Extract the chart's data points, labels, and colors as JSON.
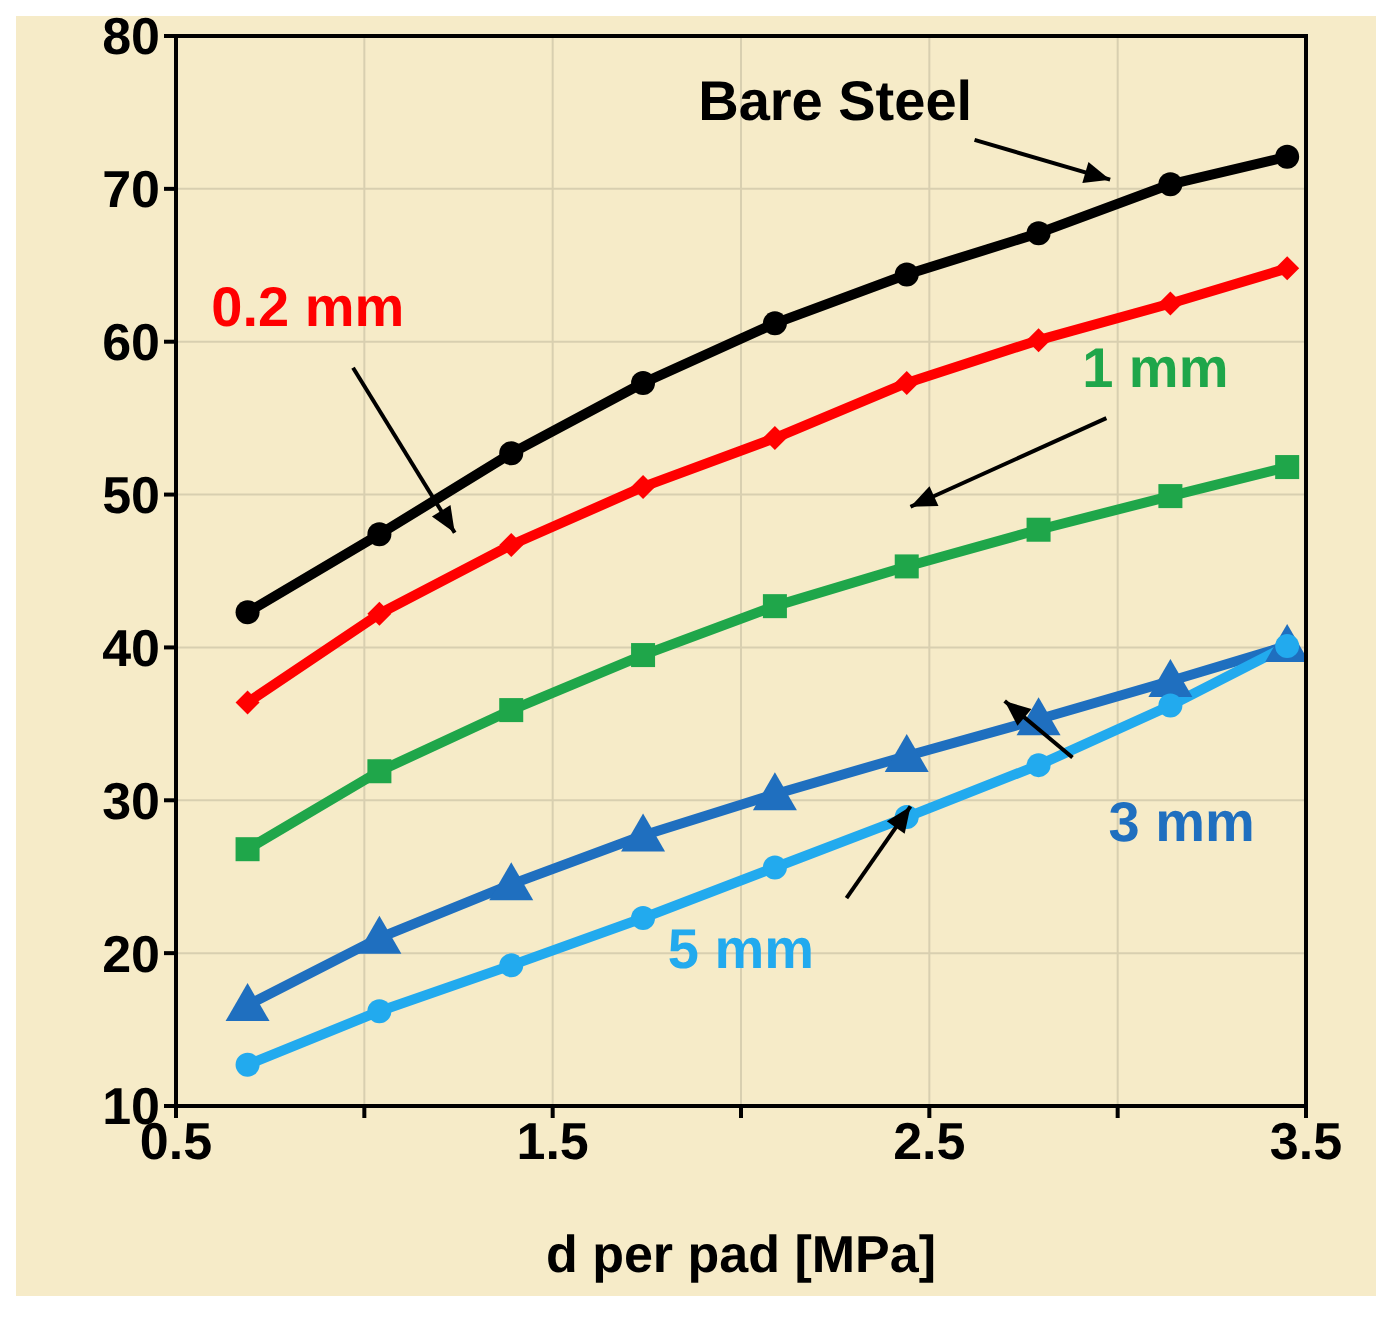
{
  "chart_data": {
    "type": "line",
    "xlabel": "d per pad [MPa]",
    "xlim": [
      0.5,
      3.5
    ],
    "ylim": [
      10,
      80
    ],
    "xticks": [
      0.5,
      {
        "value": 1,
        "label": null
      },
      1.5,
      {
        "value": 2,
        "label": null
      },
      2.5,
      {
        "value": 3,
        "label": null
      },
      3.5
    ],
    "yticks": [
      10,
      20,
      30,
      40,
      50,
      60,
      70,
      80
    ],
    "grid": true,
    "x": [
      0.69,
      1.04,
      1.39,
      1.74,
      2.09,
      2.44,
      2.79,
      3.14,
      3.45
    ],
    "series": [
      {
        "name": "Bare Steel",
        "color": "#000000",
        "marker": "circle",
        "values": [
          42.3,
          47.4,
          52.7,
          57.3,
          61.2,
          64.4,
          67.1,
          70.3,
          72.1
        ]
      },
      {
        "name": "0.2 mm",
        "color": "#ff0000",
        "marker": "diamond",
        "values": [
          36.4,
          42.2,
          46.7,
          50.5,
          53.7,
          57.3,
          60.1,
          62.5,
          64.8
        ]
      },
      {
        "name": "1 mm",
        "color": "#1fa64a",
        "marker": "square",
        "values": [
          26.8,
          31.9,
          35.9,
          39.5,
          42.7,
          45.3,
          47.7,
          49.9,
          51.8
        ]
      },
      {
        "name": "3 mm",
        "color": "#1f6fbf",
        "marker": "triangle",
        "values": [
          16.6,
          21.0,
          24.5,
          27.7,
          30.4,
          32.9,
          35.3,
          37.8,
          40.1
        ]
      },
      {
        "name": "5 mm",
        "color": "#22aaee",
        "marker": "circle",
        "values": [
          12.7,
          16.2,
          19.2,
          22.3,
          25.6,
          28.9,
          32.3,
          36.2,
          40.1
        ]
      }
    ]
  }
}
